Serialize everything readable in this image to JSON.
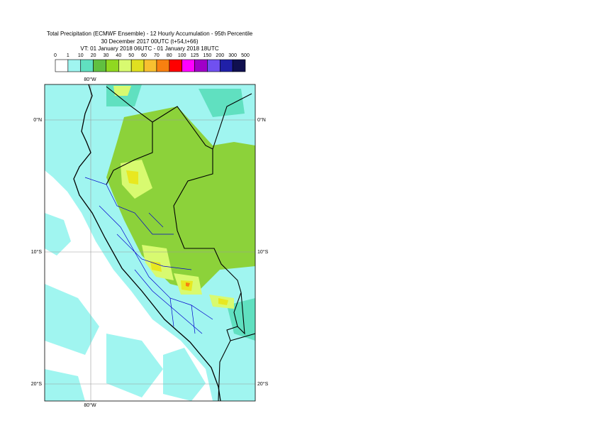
{
  "header": {
    "title": "Total Precipitation (ECMWF Ensemble) - 12 Hourly Accumulation - 95th Percentile",
    "run": "30 December 2017 00UTC (t+54,t+66)",
    "valid": "VT: 01 January 2018 06UTC - 01 January 2018 18UTC"
  },
  "legend": {
    "thresholds": [
      0,
      1,
      10,
      20,
      30,
      40,
      50,
      60,
      70,
      80,
      100,
      125,
      150,
      200,
      300,
      500
    ],
    "colors": [
      "#ffffff",
      "#a0f5f0",
      "#60e0c0",
      "#60c040",
      "#90d820",
      "#d8fa70",
      "#e0e020",
      "#f8c030",
      "#f88010",
      "#ff0000",
      "#ff00ff",
      "#a000c8",
      "#7050f0",
      "#2020a8",
      "#101050"
    ]
  },
  "map": {
    "lon_labels": [
      "80°W"
    ],
    "lat_labels": [
      "0°N",
      "10°S",
      "20°S"
    ]
  }
}
